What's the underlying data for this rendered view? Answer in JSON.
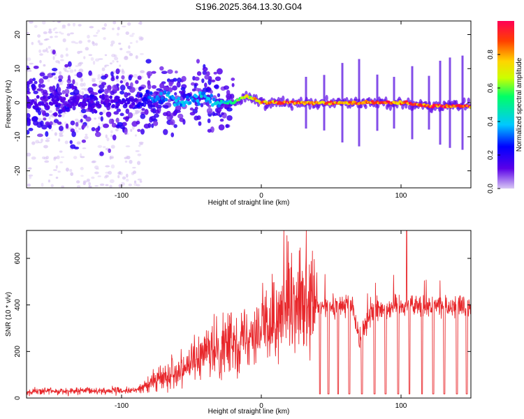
{
  "title": "S196.2025.364.13.30.G04",
  "colors": {
    "snr_line": "#e8272b",
    "axis": "#000000",
    "spectrum_faint": "#d6c1f2",
    "spectrum_core": "#5a12e0"
  },
  "chart_data": [
    {
      "type": "heatmap",
      "name": "spectrogram",
      "xlabel": "Height of straight line (km)",
      "ylabel": "Frequency (Hz)",
      "xlim": [
        -168,
        150
      ],
      "ylim": [
        -25,
        24
      ],
      "xticks": [
        -100,
        0,
        100
      ],
      "yticks": [
        -20,
        -10,
        0,
        10,
        20
      ],
      "colorbar": {
        "label": "Normalized spectral amplitude",
        "range": [
          0,
          1
        ],
        "ticks": [
          0.0,
          0.2,
          0.4,
          0.6,
          0.8
        ],
        "colormap": [
          "#d8c8f4",
          "#5a00e8",
          "#0000ff",
          "#00c8ff",
          "#00ff66",
          "#ccff00",
          "#ffd400",
          "#ff4000",
          "#ff0055"
        ]
      },
      "ridge": {
        "description": "dominant frequency near 0 Hz",
        "x": [
          -168,
          -140,
          -110,
          -90,
          -80,
          -70,
          -60,
          -50,
          -40,
          -30,
          -20,
          -10,
          -5,
          0,
          20,
          40,
          60,
          80,
          100,
          120,
          150
        ],
        "y": [
          0,
          0,
          0,
          0,
          1,
          2,
          0,
          1,
          2,
          0,
          0,
          2,
          1,
          0,
          0,
          0,
          0,
          0,
          0,
          -1,
          -1
        ],
        "amplitude": [
          0.15,
          0.15,
          0.15,
          0.2,
          0.3,
          0.35,
          0.4,
          0.35,
          0.4,
          0.4,
          0.5,
          0.7,
          0.75,
          0.85,
          0.95,
          0.9,
          0.85,
          0.9,
          0.9,
          0.95,
          0.95
        ]
      },
      "scatter_extent": {
        "x": [
          -168,
          -85
        ],
        "freq_span": [
          -25,
          24
        ]
      },
      "vertical_streaks_x": [
        32,
        45,
        58,
        70,
        83,
        95,
        108,
        120,
        128,
        135,
        144
      ]
    },
    {
      "type": "line",
      "name": "snr",
      "xlabel": "Height of straight line (km)",
      "ylabel": "SNR (10 * v/v)",
      "xlim": [
        -168,
        150
      ],
      "ylim": [
        0,
        720
      ],
      "xticks": [
        -100,
        0,
        100
      ],
      "yticks": [
        0,
        200,
        400,
        600
      ],
      "baseline": [
        {
          "x": -168,
          "y": 25
        },
        {
          "x": -90,
          "y": 28
        },
        {
          "x": -80,
          "y": 60
        },
        {
          "x": -60,
          "y": 120
        },
        {
          "x": -40,
          "y": 180
        },
        {
          "x": -20,
          "y": 240
        },
        {
          "x": 0,
          "y": 300
        },
        {
          "x": 20,
          "y": 360
        },
        {
          "x": 40,
          "y": 390
        },
        {
          "x": 65,
          "y": 400
        },
        {
          "x": 70,
          "y": 260
        },
        {
          "x": 80,
          "y": 380
        },
        {
          "x": 100,
          "y": 400
        },
        {
          "x": 150,
          "y": 390
        }
      ],
      "peak": {
        "x": 104,
        "y": 720
      },
      "dropouts_x": [
        42,
        48,
        55,
        63,
        72,
        81,
        89,
        98,
        106,
        115,
        123,
        131,
        140,
        147
      ]
    }
  ]
}
